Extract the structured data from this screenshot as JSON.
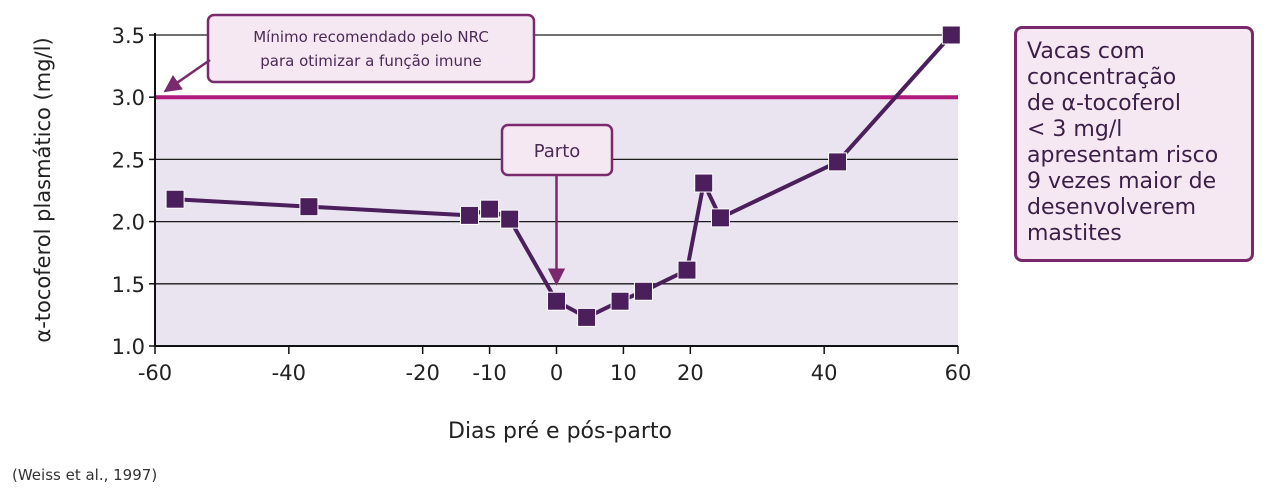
{
  "chart_data": {
    "type": "line",
    "xlabel": "Dias pré e pós-parto",
    "ylabel": "α-tocoferol plasmático (mg/l)",
    "xlim": [
      -60,
      60
    ],
    "ylim": [
      1.0,
      3.5
    ],
    "x_ticks": [
      -60,
      -40,
      -20,
      -10,
      0,
      10,
      20,
      40,
      60
    ],
    "x_tick_labels": [
      "-60",
      "-40",
      "-20",
      "-10",
      "0",
      "10",
      "20",
      "40",
      "60"
    ],
    "y_ticks": [
      1.0,
      1.5,
      2.0,
      2.5,
      3.0,
      3.5
    ],
    "y_tick_labels": [
      "1.0",
      "1.5",
      "2.0",
      "2.5",
      "3.0",
      "3.5"
    ],
    "grid": "horizontal",
    "series": [
      {
        "x": [
          -57,
          -37,
          -13,
          -10,
          -7,
          0,
          4.5,
          9.5,
          13,
          19.5,
          22,
          24.5,
          42,
          59
        ],
        "y": [
          2.18,
          2.12,
          2.05,
          2.1,
          2.02,
          1.36,
          1.23,
          1.36,
          1.44,
          1.61,
          2.31,
          2.03,
          2.48,
          3.5
        ],
        "color": "#4b1f5c",
        "marker": "square"
      }
    ],
    "threshold": {
      "y": 3.0,
      "color": "#b0197e",
      "shaded_below_color": "#eae4f0"
    },
    "annotations": [
      {
        "id": "nrc",
        "lines": [
          "Mínimo recomendado pelo NRC",
          "para otimizar a função imune"
        ],
        "points_to_y": 3.0
      },
      {
        "id": "parto",
        "text": "Parto",
        "points_to_x": 0
      }
    ],
    "side_note": [
      "Vacas com",
      "concentração",
      "de α-tocoferol",
      "< 3 mg/l",
      "apresentam risco",
      "9 vezes maior de",
      "desenvolverem",
      "mastites"
    ],
    "source": "(Weiss et al., 1997)"
  }
}
